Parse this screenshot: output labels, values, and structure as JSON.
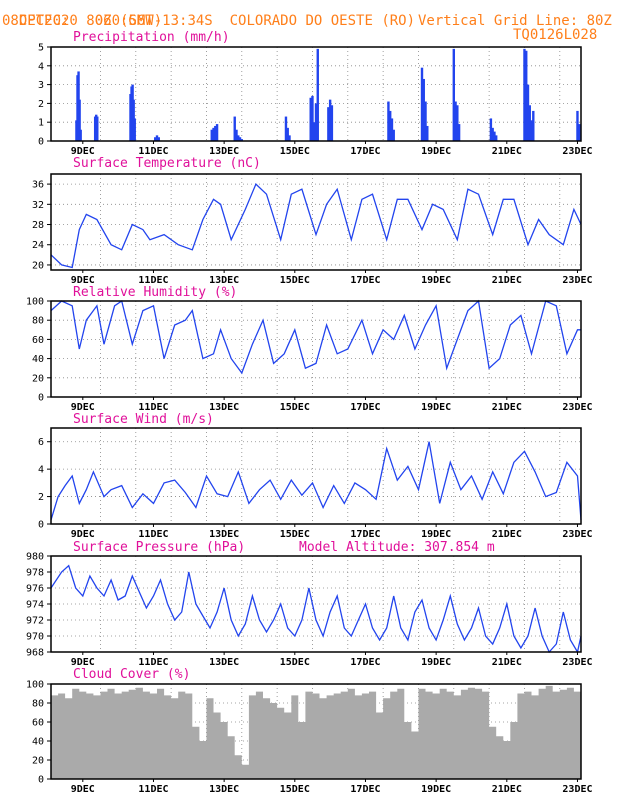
{
  "header": {
    "source": "CPTEC:",
    "coords": "060:56W-13:34S",
    "location": "COLORADO DO OESTE (RO)",
    "run_time": "08DEC2020 80Z (GMT)",
    "grid_note": "Vertical Grid Line: 80Z",
    "code": "TQ0126L028"
  },
  "x_labels": [
    "9DEC",
    "11DEC",
    "13DEC",
    "15DEC",
    "17DEC",
    "19DEC",
    "21DEC",
    "23DEC"
  ],
  "panels": {
    "precip": {
      "title": "Precipitation (mm/h)",
      "yticks": [
        "0",
        "1",
        "2",
        "3",
        "4",
        "5"
      ]
    },
    "temp": {
      "title": "Surface Temperature (nC)",
      "yticks": [
        "20",
        "24",
        "28",
        "32",
        "36"
      ]
    },
    "rh": {
      "title": "Relative Humidity (%)",
      "yticks": [
        "0",
        "20",
        "40",
        "60",
        "80",
        "100"
      ]
    },
    "wind": {
      "title": "Surface Wind (m/s)",
      "yticks": [
        "0",
        "2",
        "4",
        "6"
      ]
    },
    "press": {
      "title": "Surface Pressure (hPa)",
      "altitude": "Model Altitude: 307.854 m",
      "yticks": [
        "968",
        "970",
        "972",
        "974",
        "976",
        "978",
        "980"
      ]
    },
    "cloud": {
      "title": "Cloud Cover (%)",
      "yticks": [
        "0",
        "20",
        "40",
        "60",
        "80",
        "100"
      ]
    }
  },
  "chart_data": [
    {
      "type": "bar",
      "title": "Precipitation (mm/h)",
      "ylim": [
        0,
        5
      ],
      "x_unit": "days since 08DEC2020 00Z",
      "xlim": [
        0,
        15
      ],
      "x": [
        0.72,
        0.75,
        0.78,
        0.81,
        0.84,
        1.25,
        1.28,
        1.31,
        2.25,
        2.28,
        2.31,
        2.34,
        2.37,
        2.95,
        3.0,
        3.05,
        4.55,
        4.6,
        4.65,
        4.7,
        5.2,
        5.25,
        5.3,
        5.35,
        5.4,
        6.65,
        6.7,
        6.75,
        7.35,
        7.4,
        7.45,
        7.5,
        7.55,
        7.85,
        7.9,
        7.95,
        9.55,
        9.6,
        9.65,
        9.7,
        10.5,
        10.55,
        10.6,
        10.65,
        11.4,
        11.45,
        11.5,
        11.55,
        12.45,
        12.5,
        12.55,
        12.6,
        13.4,
        13.45,
        13.5,
        13.55,
        13.6,
        13.65,
        14.9,
        14.95
      ],
      "values": [
        1.1,
        3.5,
        3.7,
        2.2,
        0.6,
        1.3,
        1.4,
        1.3,
        2.5,
        2.9,
        3.0,
        2.2,
        1.2,
        0.2,
        0.3,
        0.2,
        0.6,
        0.7,
        0.8,
        0.9,
        1.3,
        0.6,
        0.3,
        0.2,
        0.1,
        1.3,
        0.7,
        0.3,
        2.3,
        2.4,
        1.0,
        2.0,
        4.9,
        1.8,
        2.2,
        1.9,
        2.1,
        1.6,
        1.2,
        0.6,
        3.9,
        3.3,
        2.1,
        0.8,
        4.9,
        2.1,
        1.9,
        0.9,
        1.2,
        0.7,
        0.5,
        0.3,
        4.9,
        4.8,
        3.0,
        1.9,
        1.1,
        1.6,
        1.6,
        0.9
      ]
    },
    {
      "type": "line",
      "title": "Surface Temperature (nC)",
      "ylim": [
        19,
        38
      ],
      "x_unit": "days since 08DEC2020 00Z",
      "x": [
        0,
        0.3,
        0.6,
        0.8,
        1.0,
        1.3,
        1.7,
        2.0,
        2.3,
        2.6,
        2.8,
        3.2,
        3.6,
        4.0,
        4.3,
        4.6,
        4.8,
        5.1,
        5.5,
        5.8,
        6.1,
        6.5,
        6.8,
        7.1,
        7.5,
        7.8,
        8.1,
        8.5,
        8.8,
        9.1,
        9.5,
        9.8,
        10.1,
        10.5,
        10.8,
        11.1,
        11.5,
        11.8,
        12.1,
        12.5,
        12.8,
        13.1,
        13.5,
        13.8,
        14.1,
        14.5,
        14.8,
        15
      ],
      "values": [
        22,
        20,
        19.5,
        27,
        30,
        29,
        24,
        23,
        28,
        27,
        25,
        26,
        24,
        23,
        29,
        33,
        32,
        25,
        31,
        36,
        34,
        25,
        34,
        35,
        26,
        32,
        35,
        25,
        33,
        34,
        25,
        33,
        33,
        27,
        32,
        31,
        25,
        35,
        34,
        26,
        33,
        33,
        24,
        29,
        26,
        24,
        31,
        28
      ]
    },
    {
      "type": "line",
      "title": "Relative Humidity (%)",
      "ylim": [
        0,
        100
      ],
      "x_unit": "days since 08DEC2020 00Z",
      "x": [
        0,
        0.3,
        0.6,
        0.8,
        1.0,
        1.3,
        1.5,
        1.8,
        2.0,
        2.3,
        2.6,
        2.9,
        3.2,
        3.5,
        3.8,
        4.0,
        4.3,
        4.6,
        4.8,
        5.1,
        5.4,
        5.7,
        6.0,
        6.3,
        6.6,
        6.9,
        7.2,
        7.5,
        7.8,
        8.1,
        8.4,
        8.8,
        9.1,
        9.4,
        9.7,
        10.0,
        10.3,
        10.6,
        10.9,
        11.2,
        11.5,
        11.8,
        12.1,
        12.4,
        12.7,
        13.0,
        13.3,
        13.6,
        14.0,
        14.3,
        14.6,
        14.9,
        15
      ],
      "values": [
        90,
        100,
        95,
        50,
        80,
        95,
        55,
        95,
        100,
        55,
        90,
        95,
        40,
        75,
        80,
        90,
        40,
        45,
        70,
        40,
        25,
        55,
        80,
        35,
        45,
        70,
        30,
        35,
        75,
        45,
        50,
        80,
        45,
        70,
        60,
        85,
        50,
        75,
        95,
        30,
        60,
        90,
        100,
        30,
        40,
        75,
        85,
        45,
        100,
        95,
        45,
        70,
        70
      ]
    },
    {
      "type": "line",
      "title": "Surface Wind (m/s)",
      "ylim": [
        0,
        7
      ],
      "x_unit": "days since 08DEC2020 00Z",
      "x": [
        0,
        0.2,
        0.4,
        0.6,
        0.8,
        1.0,
        1.2,
        1.5,
        1.7,
        2.0,
        2.3,
        2.6,
        2.9,
        3.2,
        3.5,
        3.8,
        4.1,
        4.4,
        4.7,
        5.0,
        5.3,
        5.6,
        5.9,
        6.2,
        6.5,
        6.8,
        7.1,
        7.4,
        7.7,
        8.0,
        8.3,
        8.6,
        8.9,
        9.2,
        9.5,
        9.8,
        10.1,
        10.4,
        10.7,
        11.0,
        11.3,
        11.6,
        11.9,
        12.2,
        12.5,
        12.8,
        13.1,
        13.4,
        13.7,
        14.0,
        14.3,
        14.6,
        14.9,
        15
      ],
      "values": [
        0.3,
        2,
        2.8,
        3.5,
        1.5,
        2.5,
        3.8,
        2.0,
        2.5,
        2.8,
        1.2,
        2.2,
        1.5,
        3.0,
        3.2,
        2.3,
        1.2,
        3.5,
        2.2,
        2.0,
        3.8,
        1.5,
        2.5,
        3.2,
        1.8,
        3.2,
        2.1,
        3.0,
        1.2,
        2.8,
        1.5,
        3.0,
        2.5,
        1.8,
        5.5,
        3.2,
        4.2,
        2.5,
        6.0,
        1.5,
        4.5,
        2.5,
        3.5,
        1.8,
        3.8,
        2.2,
        4.5,
        5.3,
        3.8,
        2.0,
        2.3,
        4.5,
        3.5,
        0.3
      ]
    },
    {
      "type": "line",
      "title": "Surface Pressure (hPa)",
      "ylim": [
        968,
        980
      ],
      "x_unit": "days since 08DEC2020 00Z",
      "x": [
        0,
        0.3,
        0.5,
        0.7,
        0.9,
        1.1,
        1.3,
        1.5,
        1.7,
        1.9,
        2.1,
        2.3,
        2.5,
        2.7,
        2.9,
        3.1,
        3.3,
        3.5,
        3.7,
        3.9,
        4.1,
        4.3,
        4.5,
        4.7,
        4.9,
        5.1,
        5.3,
        5.5,
        5.7,
        5.9,
        6.1,
        6.3,
        6.5,
        6.7,
        6.9,
        7.1,
        7.3,
        7.5,
        7.7,
        7.9,
        8.1,
        8.3,
        8.5,
        8.7,
        8.9,
        9.1,
        9.3,
        9.5,
        9.7,
        9.9,
        10.1,
        10.3,
        10.5,
        10.7,
        10.9,
        11.1,
        11.3,
        11.5,
        11.7,
        11.9,
        12.1,
        12.3,
        12.5,
        12.7,
        12.9,
        13.1,
        13.3,
        13.5,
        13.7,
        13.9,
        14.1,
        14.3,
        14.5,
        14.7,
        14.9,
        15
      ],
      "values": [
        976,
        978,
        978.8,
        976,
        975,
        977.5,
        976,
        975,
        977,
        974.5,
        975,
        977.5,
        975.5,
        973.5,
        975,
        977,
        974,
        972,
        973,
        978,
        974,
        972.5,
        971,
        973,
        976,
        972,
        970,
        971.5,
        975,
        972,
        970.5,
        972,
        974,
        971,
        970,
        972,
        976,
        972,
        970,
        973,
        975,
        971,
        970,
        972,
        974,
        971,
        969.5,
        971,
        975,
        971,
        969.5,
        973,
        974.5,
        971,
        969.5,
        972,
        975,
        971.5,
        969.5,
        971,
        973.5,
        970,
        969,
        971,
        974,
        970,
        968.5,
        970,
        973.5,
        970,
        968,
        969,
        973,
        969.5,
        968,
        970
      ]
    },
    {
      "type": "area",
      "title": "Cloud Cover (%)",
      "ylim": [
        0,
        100
      ],
      "x_unit": "days since 08DEC2020 00Z",
      "x": [
        0,
        0.2,
        0.4,
        0.6,
        0.8,
        1.0,
        1.2,
        1.4,
        1.6,
        1.8,
        2.0,
        2.2,
        2.4,
        2.6,
        2.8,
        3.0,
        3.2,
        3.4,
        3.6,
        3.8,
        4.0,
        4.2,
        4.4,
        4.6,
        4.8,
        5.0,
        5.2,
        5.4,
        5.6,
        5.8,
        6.0,
        6.2,
        6.4,
        6.6,
        6.8,
        7.0,
        7.2,
        7.4,
        7.6,
        7.8,
        8.0,
        8.2,
        8.4,
        8.6,
        8.8,
        9.0,
        9.2,
        9.4,
        9.6,
        9.8,
        10.0,
        10.2,
        10.4,
        10.6,
        10.8,
        11.0,
        11.2,
        11.4,
        11.6,
        11.8,
        12.0,
        12.2,
        12.4,
        12.6,
        12.8,
        13.0,
        13.2,
        13.4,
        13.6,
        13.8,
        14.0,
        14.2,
        14.4,
        14.6,
        14.8,
        15
      ],
      "values": [
        88,
        90,
        85,
        95,
        92,
        90,
        88,
        92,
        95,
        90,
        92,
        94,
        96,
        92,
        90,
        95,
        88,
        85,
        92,
        90,
        55,
        40,
        85,
        70,
        60,
        45,
        25,
        15,
        88,
        92,
        85,
        80,
        75,
        70,
        88,
        60,
        92,
        90,
        85,
        88,
        90,
        92,
        95,
        88,
        90,
        92,
        70,
        85,
        92,
        95,
        60,
        50,
        95,
        92,
        90,
        95,
        92,
        88,
        94,
        96,
        95,
        92,
        55,
        45,
        40,
        60,
        90,
        92,
        88,
        95,
        98,
        92,
        94,
        96,
        92,
        95
      ]
    }
  ]
}
